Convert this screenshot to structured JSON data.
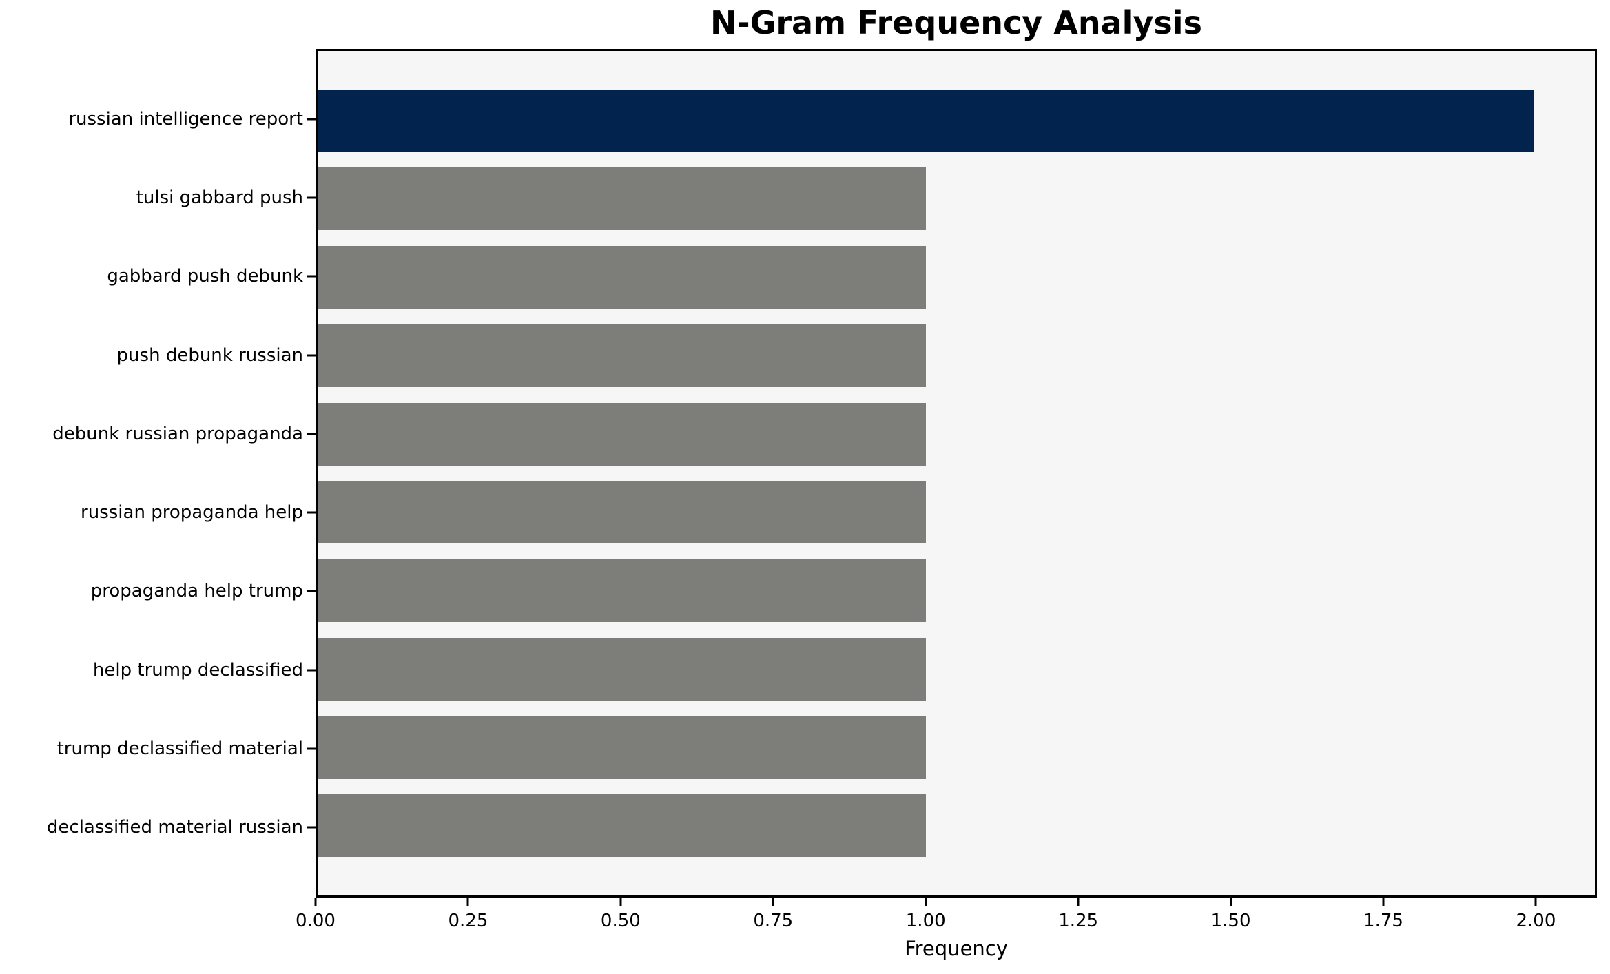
{
  "chart_data": {
    "type": "bar",
    "orientation": "horizontal",
    "title": "N-Gram Frequency Analysis",
    "xlabel": "Frequency",
    "ylabel": "",
    "categories": [
      "russian intelligence report",
      "tulsi gabbard push",
      "gabbard push debunk",
      "push debunk russian",
      "debunk russian propaganda",
      "russian propaganda help",
      "propaganda help trump",
      "help trump declassified",
      "trump declassified material",
      "declassified material russian"
    ],
    "values": [
      2,
      1,
      1,
      1,
      1,
      1,
      1,
      1,
      1,
      1
    ],
    "bar_colors": [
      "#02234d",
      "#7d7d7a",
      "#7d7d7a",
      "#7d7d7a",
      "#7d7d7a",
      "#7d7d7a",
      "#7d7d7a",
      "#7d7d7a",
      "#7d7d7a",
      "#7d7d7a"
    ],
    "xlim": [
      0,
      2.1
    ],
    "xticks": {
      "values": [
        0.0,
        0.25,
        0.5,
        0.75,
        1.0,
        1.25,
        1.5,
        1.75,
        2.0
      ],
      "labels": [
        "0.00",
        "0.25",
        "0.50",
        "0.75",
        "1.00",
        "1.25",
        "1.50",
        "1.75",
        "2.00"
      ]
    },
    "grid": false,
    "legend": null,
    "colors": {
      "highlight_bar": "#02234d",
      "default_bar": "#7d7d7a",
      "plot_background": "#f6f6f6",
      "figure_background": "#ffffff",
      "text": "#000000",
      "spine": "#000000"
    }
  }
}
